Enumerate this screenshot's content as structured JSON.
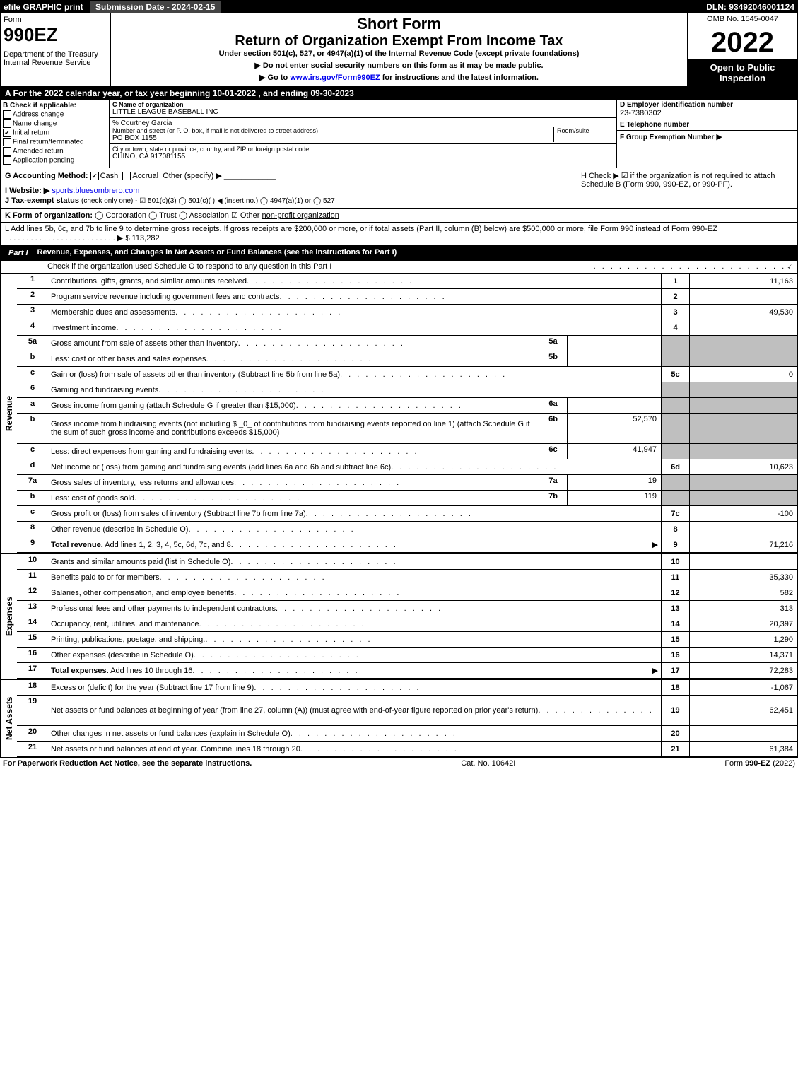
{
  "topbar": {
    "efile": "efile GRAPHIC print",
    "sub_date_label": "Submission Date - 2024-02-15",
    "dln": "DLN: 93492046001124"
  },
  "header": {
    "form_word": "Form",
    "form_no": "990EZ",
    "dept": "Department of the Treasury",
    "irs": "Internal Revenue Service",
    "short": "Short Form",
    "return_title": "Return of Organization Exempt From Income Tax",
    "subtitle": "Under section 501(c), 527, or 4947(a)(1) of the Internal Revenue Code (except private foundations)",
    "note1": "▶ Do not enter social security numbers on this form as it may be made public.",
    "note2_prefix": "▶ Go to ",
    "note2_link": "www.irs.gov/Form990EZ",
    "note2_suffix": " for instructions and the latest information.",
    "omb": "OMB No. 1545-0047",
    "year": "2022",
    "open": "Open to Public Inspection"
  },
  "lineA": "A  For the 2022 calendar year, or tax year beginning 10-01-2022 , and ending 09-30-2023",
  "B": {
    "title": "B  Check if applicable:",
    "items": [
      "Address change",
      "Name change",
      "Initial return",
      "Final return/terminated",
      "Amended return",
      "Application pending"
    ],
    "checked_idx": 2
  },
  "C": {
    "label": "C Name of organization",
    "name": "LITTLE LEAGUE BASEBALL INC",
    "careof": "% Courtney Garcia",
    "street_label": "Number and street (or P. O. box, if mail is not delivered to street address)",
    "room_label": "Room/suite",
    "street": "PO BOX 1155",
    "city_label": "City or town, state or province, country, and ZIP or foreign postal code",
    "city": "CHINO, CA  917081155"
  },
  "D": {
    "label": "D Employer identification number",
    "value": "23-7380302"
  },
  "E": {
    "label": "E Telephone number",
    "value": ""
  },
  "F": {
    "label": "F Group Exemption Number",
    "value": "▶"
  },
  "G": {
    "label": "G Accounting Method:",
    "cash": "Cash",
    "accrual": "Accrual",
    "other": "Other (specify) ▶",
    "checked": "cash"
  },
  "H": {
    "text": "H  Check ▶ ☑ if the organization is not required to attach Schedule B (Form 990, 990-EZ, or 990-PF)."
  },
  "I": {
    "label": "I Website: ▶",
    "value": "sports.bluesombrero.com"
  },
  "J": {
    "label": "J Tax-exempt status",
    "text": "(check only one) -  ☑ 501(c)(3)  ◯ 501(c)(  ) ◀ (insert no.)  ◯ 4947(a)(1) or  ◯ 527"
  },
  "K": {
    "label": "K Form of organization:",
    "text": "◯ Corporation  ◯ Trust  ◯ Association  ☑ Other",
    "other_val": "non-profit organization"
  },
  "L": {
    "text": "L Add lines 5b, 6c, and 7b to line 9 to determine gross receipts. If gross receipts are $200,000 or more, or if total assets (Part II, column (B) below) are $500,000 or more, file Form 990 instead of Form 990-EZ",
    "value": "▶ $ 113,282"
  },
  "partI": {
    "tag": "Part I",
    "title": "Revenue, Expenses, and Changes in Net Assets or Fund Balances (see the instructions for Part I)",
    "check_line": "Check if the organization used Schedule O to respond to any question in this Part I",
    "check_val": "☑"
  },
  "side_rev": "Revenue",
  "side_exp": "Expenses",
  "side_net": "Net Assets",
  "rows": [
    {
      "n": "1",
      "d": "Contributions, gifts, grants, and similar amounts received",
      "rn": "1",
      "rv": "11,163"
    },
    {
      "n": "2",
      "d": "Program service revenue including government fees and contracts",
      "rn": "2",
      "rv": ""
    },
    {
      "n": "3",
      "d": "Membership dues and assessments",
      "rn": "3",
      "rv": "49,530"
    },
    {
      "n": "4",
      "d": "Investment income",
      "rn": "4",
      "rv": ""
    },
    {
      "n": "5a",
      "d": "Gross amount from sale of assets other than inventory",
      "mn": "5a",
      "mv": "",
      "shaded": true
    },
    {
      "n": "b",
      "d": "Less: cost or other basis and sales expenses",
      "mn": "5b",
      "mv": "",
      "shaded": true
    },
    {
      "n": "c",
      "d": "Gain or (loss) from sale of assets other than inventory (Subtract line 5b from line 5a)",
      "rn": "5c",
      "rv": "0"
    },
    {
      "n": "6",
      "d": "Gaming and fundraising events",
      "shaded": true,
      "novals": true
    },
    {
      "n": "a",
      "d": "Gross income from gaming (attach Schedule G if greater than $15,000)",
      "mn": "6a",
      "mv": "",
      "shaded": true
    },
    {
      "n": "b",
      "d": "Gross income from fundraising events (not including $ _0_ of contributions from fundraising events reported on line 1) (attach Schedule G if the sum of such gross income and contributions exceeds $15,000)",
      "mn": "6b",
      "mv": "52,570",
      "shaded": true,
      "tall": true
    },
    {
      "n": "c",
      "d": "Less: direct expenses from gaming and fundraising events",
      "mn": "6c",
      "mv": "41,947",
      "shaded": true
    },
    {
      "n": "d",
      "d": "Net income or (loss) from gaming and fundraising events (add lines 6a and 6b and subtract line 6c)",
      "rn": "6d",
      "rv": "10,623"
    },
    {
      "n": "7a",
      "d": "Gross sales of inventory, less returns and allowances",
      "mn": "7a",
      "mv": "19",
      "shaded": true
    },
    {
      "n": "b",
      "d": "Less: cost of goods sold",
      "mn": "7b",
      "mv": "119",
      "shaded": true
    },
    {
      "n": "c",
      "d": "Gross profit or (loss) from sales of inventory (Subtract line 7b from line 7a)",
      "rn": "7c",
      "rv": "-100"
    },
    {
      "n": "8",
      "d": "Other revenue (describe in Schedule O)",
      "rn": "8",
      "rv": ""
    },
    {
      "n": "9",
      "d": "Total revenue. Add lines 1, 2, 3, 4, 5c, 6d, 7c, and 8",
      "rn": "9",
      "rv": "71,216",
      "arrow": true,
      "boldd": true
    }
  ],
  "exp_rows": [
    {
      "n": "10",
      "d": "Grants and similar amounts paid (list in Schedule O)",
      "rn": "10",
      "rv": ""
    },
    {
      "n": "11",
      "d": "Benefits paid to or for members",
      "rn": "11",
      "rv": "35,330"
    },
    {
      "n": "12",
      "d": "Salaries, other compensation, and employee benefits",
      "rn": "12",
      "rv": "582"
    },
    {
      "n": "13",
      "d": "Professional fees and other payments to independent contractors",
      "rn": "13",
      "rv": "313"
    },
    {
      "n": "14",
      "d": "Occupancy, rent, utilities, and maintenance",
      "rn": "14",
      "rv": "20,397"
    },
    {
      "n": "15",
      "d": "Printing, publications, postage, and shipping.",
      "rn": "15",
      "rv": "1,290"
    },
    {
      "n": "16",
      "d": "Other expenses (describe in Schedule O)",
      "rn": "16",
      "rv": "14,371"
    },
    {
      "n": "17",
      "d": "Total expenses. Add lines 10 through 16",
      "rn": "17",
      "rv": "72,283",
      "arrow": true,
      "boldd": true
    }
  ],
  "net_rows": [
    {
      "n": "18",
      "d": "Excess or (deficit) for the year (Subtract line 17 from line 9)",
      "rn": "18",
      "rv": "-1,067"
    },
    {
      "n": "19",
      "d": "Net assets or fund balances at beginning of year (from line 27, column (A)) (must agree with end-of-year figure reported on prior year's return)",
      "rn": "19",
      "rv": "62,451",
      "tall": true
    },
    {
      "n": "20",
      "d": "Other changes in net assets or fund balances (explain in Schedule O)",
      "rn": "20",
      "rv": ""
    },
    {
      "n": "21",
      "d": "Net assets or fund balances at end of year. Combine lines 18 through 20",
      "rn": "21",
      "rv": "61,384"
    }
  ],
  "footer": {
    "left": "For Paperwork Reduction Act Notice, see the separate instructions.",
    "mid": "Cat. No. 10642I",
    "right_prefix": "Form ",
    "right_form": "990-EZ",
    "right_suffix": " (2022)"
  },
  "colors": {
    "black": "#000000",
    "white": "#ffffff",
    "shade": "#bfbfbf",
    "link": "#0000ee"
  }
}
